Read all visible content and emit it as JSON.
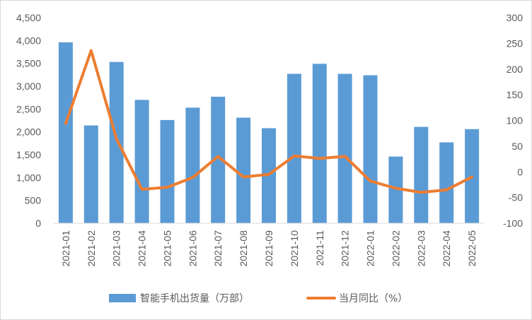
{
  "chart_data": {
    "type": "bar",
    "categories": [
      "2021-01",
      "2021-02",
      "2021-03",
      "2021-04",
      "2021-05",
      "2021-06",
      "2021-07",
      "2021-08",
      "2021-09",
      "2021-10",
      "2021-11",
      "2021-12",
      "2022-01",
      "2022-02",
      "2022-03",
      "2022-04",
      "2022-05"
    ],
    "series": [
      {
        "name": "智能手机出货量（万部）",
        "type": "bar",
        "axis": "left",
        "color": "#5b9bd5",
        "values": [
          3960,
          2140,
          3530,
          2700,
          2260,
          2530,
          2770,
          2310,
          2080,
          3270,
          3490,
          3270,
          3240,
          1460,
          2110,
          1770,
          2060
        ]
      },
      {
        "name": "当月同比（%）",
        "type": "line",
        "axis": "right",
        "color": "#ed7d31",
        "values": [
          94,
          236,
          64,
          -34,
          -30,
          -11,
          30,
          -10,
          -5,
          31,
          26,
          30,
          -18,
          -32,
          -40,
          -35,
          -10
        ]
      }
    ],
    "y_left": {
      "min": 0,
      "max": 4500,
      "step": 500,
      "tick_labels": [
        "0",
        "500",
        "1,000",
        "1,500",
        "2,000",
        "2,500",
        "3,000",
        "3,500",
        "4,000",
        "4,500"
      ]
    },
    "y_right": {
      "min": -100,
      "max": 300,
      "step": 50,
      "tick_labels": [
        "-100",
        "-50",
        "0",
        "50",
        "100",
        "150",
        "200",
        "250",
        "300"
      ]
    },
    "grid": false,
    "legend_position": "bottom"
  }
}
